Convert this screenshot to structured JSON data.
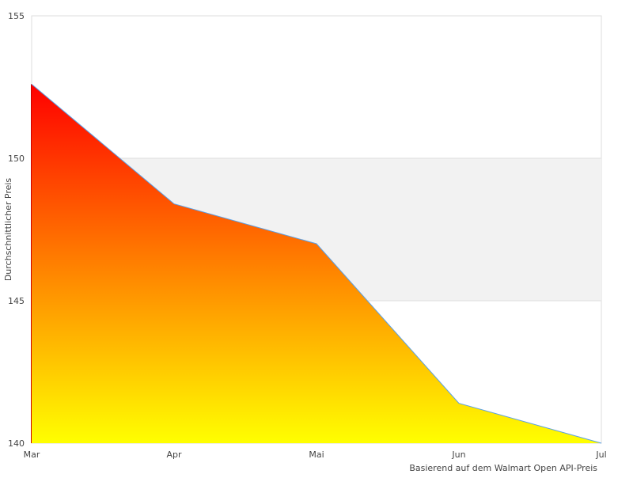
{
  "chart_data": {
    "type": "area",
    "categories": [
      "Mar",
      "Apr",
      "Mai",
      "Jun",
      "Jul"
    ],
    "values": [
      152.6,
      148.4,
      147.0,
      141.4,
      140.0
    ],
    "ylabel": "Durchschnittlicher Preis",
    "xlabel": "",
    "note": "Basierend auf dem Walmart Open API-Preis",
    "ylim": [
      140,
      155
    ],
    "yticks": [
      140,
      145,
      150,
      155
    ],
    "grid": "alternating horizontal bands",
    "legend": "none",
    "colors": {
      "fill_top": "#ff0000",
      "fill_bottom": "#ffff00",
      "line": "#5aa0e6",
      "band": "#f2f2f2",
      "grid": "#dddddd"
    }
  }
}
